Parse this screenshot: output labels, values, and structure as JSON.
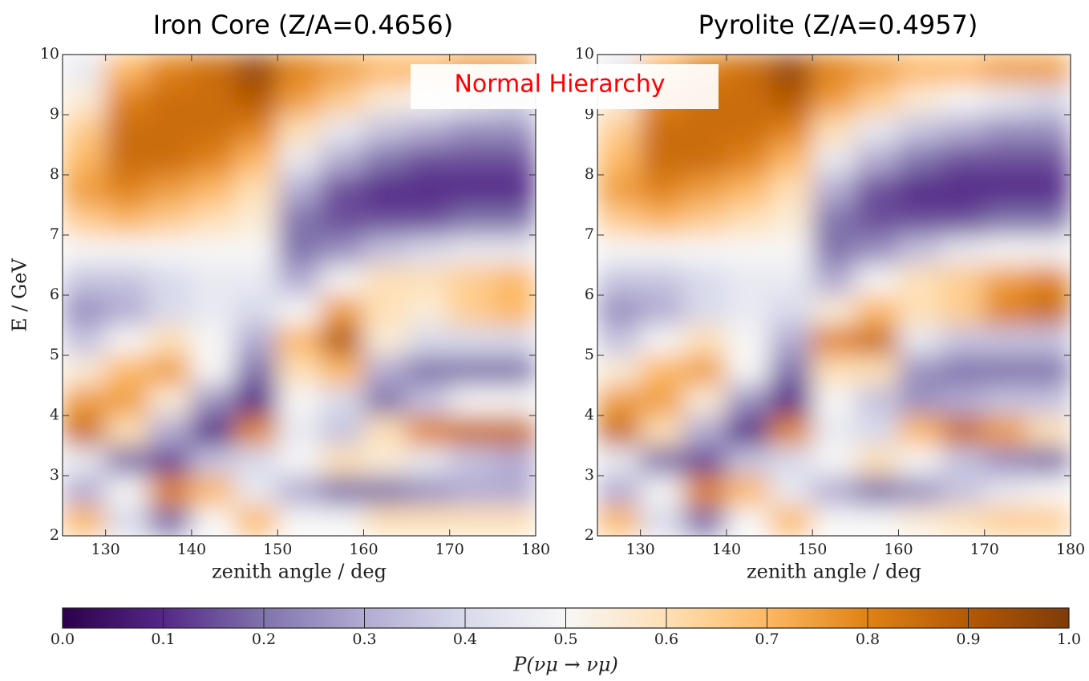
{
  "note": "Normal Hierarchy",
  "colorbar": {
    "label": "P(νμ → νμ)",
    "colors": [
      "#2d004b",
      "#542788",
      "#8073ac",
      "#b2abd2",
      "#d8daeb",
      "#f7f7f7",
      "#fee0b6",
      "#fdb863",
      "#e08214",
      "#b35806",
      "#7f3b08"
    ],
    "lim": [
      0,
      1
    ],
    "ticks": [
      {
        "value": 0,
        "label": "0.0"
      },
      0.1,
      0.2,
      0.3,
      0.4,
      0.5,
      0.6,
      0.7,
      0.8,
      0.9,
      {
        "value": 1,
        "label": "1.0"
      }
    ]
  },
  "chart_data": [
    {
      "type": "heatmap",
      "title": "Iron Core (Z/A=0.4656)",
      "x_label": "zenith angle / deg",
      "y_label": "E / GeV",
      "xlim": [
        125,
        180
      ],
      "ylim": [
        2,
        10
      ],
      "xticks": [
        130,
        140,
        150,
        160,
        170,
        180
      ],
      "yticks": [
        2,
        3,
        4,
        5,
        6,
        7,
        8,
        9,
        10
      ],
      "x": [
        127.5,
        132.5,
        137.5,
        142.5,
        147.5,
        152.5,
        157.5,
        162.5,
        167.5,
        172.5,
        177.5
      ],
      "y": [
        2.25,
        2.75,
        3.25,
        3.75,
        4.25,
        4.75,
        5.25,
        5.75,
        6.25,
        6.75,
        7.25,
        7.75,
        8.25,
        8.75,
        9.25,
        9.75
      ],
      "z": [
        [
          0.7,
          0.4,
          0.2,
          0.5,
          0.7,
          0.5,
          0.5,
          0.6,
          0.6,
          0.6,
          0.6
        ],
        [
          0.3,
          0.5,
          0.8,
          0.7,
          0.45,
          0.3,
          0.2,
          0.2,
          0.25,
          0.3,
          0.3
        ],
        [
          0.45,
          0.2,
          0.15,
          0.35,
          0.4,
          0.5,
          0.6,
          0.55,
          0.45,
          0.35,
          0.3
        ],
        [
          0.85,
          0.6,
          0.3,
          0.1,
          0.8,
          0.45,
          0.35,
          0.6,
          0.8,
          0.85,
          0.85
        ],
        [
          0.75,
          0.75,
          0.55,
          0.25,
          0.1,
          0.5,
          0.4,
          0.2,
          0.35,
          0.5,
          0.5
        ],
        [
          0.55,
          0.7,
          0.75,
          0.5,
          0.2,
          0.6,
          0.7,
          0.3,
          0.2,
          0.2,
          0.2
        ],
        [
          0.35,
          0.5,
          0.6,
          0.5,
          0.3,
          0.7,
          0.9,
          0.55,
          0.4,
          0.4,
          0.4
        ],
        [
          0.25,
          0.3,
          0.4,
          0.45,
          0.4,
          0.5,
          0.75,
          0.6,
          0.55,
          0.65,
          0.7
        ],
        [
          0.35,
          0.35,
          0.4,
          0.45,
          0.45,
          0.3,
          0.5,
          0.6,
          0.6,
          0.65,
          0.7
        ],
        [
          0.5,
          0.5,
          0.5,
          0.5,
          0.5,
          0.2,
          0.25,
          0.35,
          0.4,
          0.45,
          0.45
        ],
        [
          0.65,
          0.7,
          0.65,
          0.6,
          0.55,
          0.2,
          0.15,
          0.15,
          0.15,
          0.2,
          0.2
        ],
        [
          0.75,
          0.8,
          0.75,
          0.7,
          0.6,
          0.3,
          0.15,
          0.1,
          0.1,
          0.1,
          0.1
        ],
        [
          0.7,
          0.85,
          0.85,
          0.8,
          0.7,
          0.45,
          0.3,
          0.2,
          0.15,
          0.15,
          0.15
        ],
        [
          0.65,
          0.85,
          0.85,
          0.85,
          0.8,
          0.6,
          0.45,
          0.35,
          0.3,
          0.25,
          0.25
        ],
        [
          0.55,
          0.8,
          0.85,
          0.85,
          0.9,
          0.75,
          0.65,
          0.55,
          0.5,
          0.45,
          0.4
        ],
        [
          0.45,
          0.7,
          0.8,
          0.85,
          0.95,
          0.8,
          0.75,
          0.7,
          0.7,
          0.75,
          0.75
        ]
      ]
    },
    {
      "type": "heatmap",
      "title": "Pyrolite (Z/A=0.4957)",
      "x_label": "zenith angle / deg",
      "xlim": [
        125,
        180
      ],
      "ylim": [
        2,
        10
      ],
      "xticks": [
        130,
        140,
        150,
        160,
        170,
        180
      ],
      "yticks": [
        2,
        3,
        4,
        5,
        6,
        7,
        8,
        9,
        10
      ],
      "x": [
        127.5,
        132.5,
        137.5,
        142.5,
        147.5,
        152.5,
        157.5,
        162.5,
        167.5,
        172.5,
        177.5
      ],
      "y": [
        2.25,
        2.75,
        3.25,
        3.75,
        4.25,
        4.75,
        5.25,
        5.75,
        6.25,
        6.75,
        7.25,
        7.75,
        8.25,
        8.75,
        9.25,
        9.75
      ],
      "z": [
        [
          0.7,
          0.4,
          0.2,
          0.5,
          0.7,
          0.5,
          0.5,
          0.55,
          0.6,
          0.65,
          0.65
        ],
        [
          0.3,
          0.5,
          0.8,
          0.7,
          0.45,
          0.3,
          0.2,
          0.25,
          0.35,
          0.45,
          0.5
        ],
        [
          0.45,
          0.2,
          0.15,
          0.35,
          0.4,
          0.5,
          0.6,
          0.5,
          0.35,
          0.25,
          0.2
        ],
        [
          0.85,
          0.6,
          0.3,
          0.1,
          0.8,
          0.45,
          0.4,
          0.7,
          0.85,
          0.75,
          0.6
        ],
        [
          0.75,
          0.75,
          0.55,
          0.25,
          0.1,
          0.5,
          0.35,
          0.25,
          0.3,
          0.35,
          0.35
        ],
        [
          0.55,
          0.7,
          0.75,
          0.5,
          0.2,
          0.6,
          0.6,
          0.25,
          0.2,
          0.2,
          0.2
        ],
        [
          0.35,
          0.5,
          0.6,
          0.5,
          0.3,
          0.8,
          0.85,
          0.45,
          0.35,
          0.35,
          0.35
        ],
        [
          0.25,
          0.3,
          0.4,
          0.45,
          0.4,
          0.55,
          0.7,
          0.6,
          0.65,
          0.8,
          0.85
        ],
        [
          0.35,
          0.35,
          0.4,
          0.45,
          0.45,
          0.3,
          0.5,
          0.6,
          0.65,
          0.75,
          0.8
        ],
        [
          0.5,
          0.5,
          0.5,
          0.5,
          0.5,
          0.2,
          0.25,
          0.35,
          0.45,
          0.5,
          0.5
        ],
        [
          0.65,
          0.7,
          0.65,
          0.6,
          0.55,
          0.2,
          0.15,
          0.15,
          0.15,
          0.2,
          0.2
        ],
        [
          0.75,
          0.8,
          0.75,
          0.7,
          0.6,
          0.3,
          0.15,
          0.1,
          0.1,
          0.1,
          0.1
        ],
        [
          0.7,
          0.85,
          0.85,
          0.8,
          0.7,
          0.45,
          0.3,
          0.2,
          0.15,
          0.15,
          0.15
        ],
        [
          0.65,
          0.85,
          0.85,
          0.85,
          0.8,
          0.6,
          0.45,
          0.35,
          0.3,
          0.25,
          0.25
        ],
        [
          0.55,
          0.8,
          0.85,
          0.85,
          0.9,
          0.75,
          0.65,
          0.55,
          0.5,
          0.45,
          0.4
        ],
        [
          0.45,
          0.7,
          0.8,
          0.85,
          0.95,
          0.8,
          0.75,
          0.7,
          0.7,
          0.75,
          0.75
        ]
      ]
    }
  ]
}
